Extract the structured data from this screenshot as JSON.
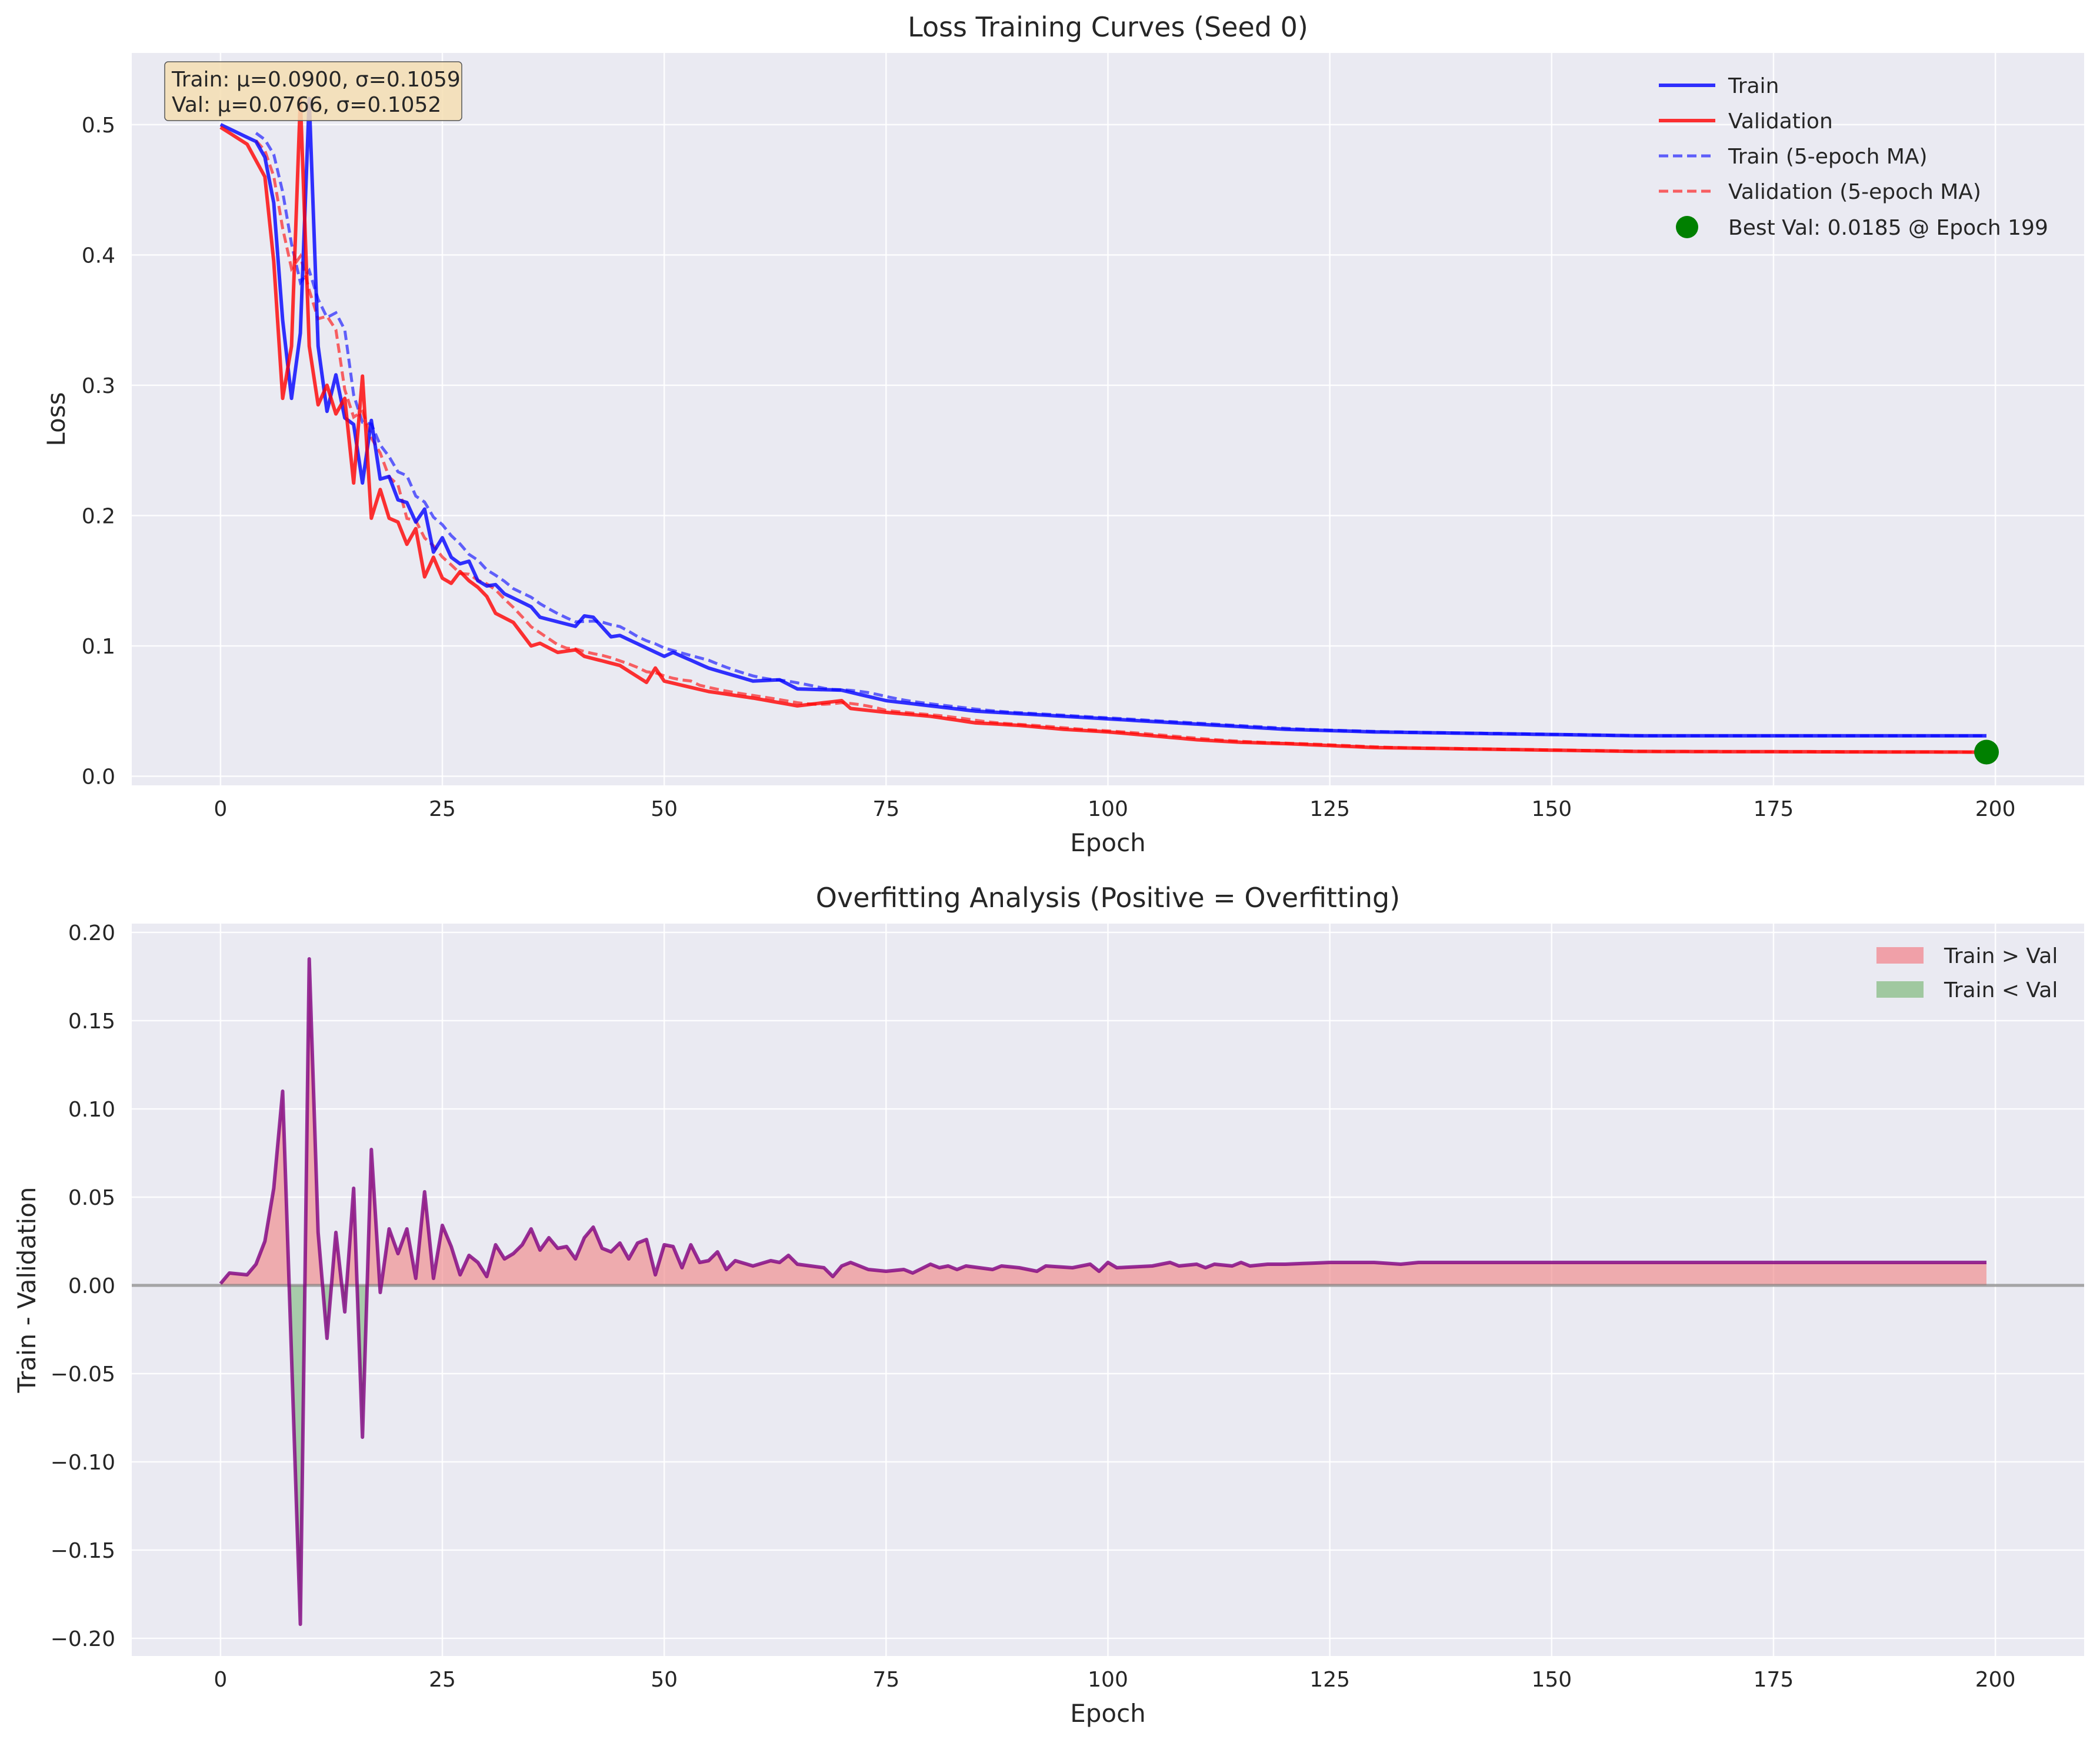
{
  "chart_data": [
    {
      "type": "line",
      "title": "Loss Training Curves (Seed 0)",
      "xlabel": "Epoch",
      "ylabel": "Loss",
      "xlim": [
        -10,
        210
      ],
      "ylim": [
        -0.007,
        0.555
      ],
      "xticks": [
        0,
        25,
        50,
        75,
        100,
        125,
        150,
        175,
        200
      ],
      "yticks": [
        0.0,
        0.1,
        0.2,
        0.3,
        0.4,
        0.5
      ],
      "xtick_labels": [
        "0",
        "25",
        "50",
        "75",
        "100",
        "125",
        "150",
        "175",
        "200"
      ],
      "ytick_labels": [
        "0.0",
        "0.1",
        "0.2",
        "0.3",
        "0.4",
        "0.5"
      ],
      "grid": true,
      "legend_position": "top-right",
      "stats_box": {
        "line1": "Train: μ=0.0900, σ=0.1059",
        "line2": "Val: μ=0.0766, σ=0.1052"
      },
      "colors": {
        "train": "#0000ff",
        "val": "#ff0000",
        "best": "#008000"
      },
      "series": [
        {
          "name": "Train",
          "style": "solid",
          "color": "#0000ff"
        },
        {
          "name": "Validation",
          "style": "solid",
          "color": "#ff0000"
        },
        {
          "name": "Train (5-epoch MA)",
          "style": "dashed",
          "color": "#0000ff"
        },
        {
          "name": "Validation (5-epoch MA)",
          "style": "dashed",
          "color": "#ff0000"
        }
      ],
      "train_keypoints": [
        [
          0,
          0.5
        ],
        [
          4,
          0.487
        ],
        [
          5,
          0.475
        ],
        [
          6,
          0.44
        ],
        [
          7,
          0.35
        ],
        [
          8,
          0.29
        ],
        [
          9,
          0.34
        ],
        [
          10,
          0.52
        ],
        [
          11,
          0.33
        ],
        [
          12,
          0.28
        ],
        [
          13,
          0.308
        ],
        [
          14,
          0.275
        ],
        [
          15,
          0.27
        ],
        [
          16,
          0.225
        ],
        [
          17,
          0.273
        ],
        [
          18,
          0.228
        ],
        [
          19,
          0.23
        ],
        [
          20,
          0.212
        ],
        [
          21,
          0.21
        ],
        [
          22,
          0.195
        ],
        [
          23,
          0.205
        ],
        [
          24,
          0.172
        ],
        [
          25,
          0.183
        ],
        [
          26,
          0.168
        ],
        [
          27,
          0.163
        ],
        [
          28,
          0.165
        ],
        [
          29,
          0.15
        ],
        [
          30,
          0.146
        ],
        [
          31,
          0.147
        ],
        [
          32,
          0.14
        ],
        [
          35,
          0.13
        ],
        [
          36,
          0.122
        ],
        [
          40,
          0.115
        ],
        [
          41,
          0.123
        ],
        [
          42,
          0.122
        ],
        [
          44,
          0.107
        ],
        [
          45,
          0.108
        ],
        [
          50,
          0.092
        ],
        [
          51,
          0.095
        ],
        [
          55,
          0.083
        ],
        [
          60,
          0.073
        ],
        [
          63,
          0.074
        ],
        [
          65,
          0.067
        ],
        [
          70,
          0.066
        ],
        [
          75,
          0.058
        ],
        [
          80,
          0.054
        ],
        [
          85,
          0.05
        ],
        [
          90,
          0.048
        ],
        [
          95,
          0.046
        ],
        [
          100,
          0.044
        ],
        [
          105,
          0.042
        ],
        [
          110,
          0.04
        ],
        [
          115,
          0.038
        ],
        [
          120,
          0.036
        ],
        [
          130,
          0.034
        ],
        [
          140,
          0.033
        ],
        [
          150,
          0.032
        ],
        [
          160,
          0.031
        ],
        [
          175,
          0.031
        ],
        [
          199,
          0.031
        ]
      ],
      "val_keypoints": [
        [
          0,
          0.498
        ],
        [
          3,
          0.485
        ],
        [
          5,
          0.46
        ],
        [
          6,
          0.395
        ],
        [
          7,
          0.29
        ],
        [
          8,
          0.33
        ],
        [
          9,
          0.52
        ],
        [
          10,
          0.33
        ],
        [
          11,
          0.285
        ],
        [
          12,
          0.3
        ],
        [
          13,
          0.278
        ],
        [
          14,
          0.29
        ],
        [
          15,
          0.225
        ],
        [
          16,
          0.307
        ],
        [
          17,
          0.198
        ],
        [
          18,
          0.22
        ],
        [
          19,
          0.198
        ],
        [
          20,
          0.195
        ],
        [
          21,
          0.178
        ],
        [
          22,
          0.19
        ],
        [
          23,
          0.153
        ],
        [
          24,
          0.168
        ],
        [
          25,
          0.152
        ],
        [
          26,
          0.148
        ],
        [
          27,
          0.157
        ],
        [
          28,
          0.15
        ],
        [
          29,
          0.145
        ],
        [
          30,
          0.138
        ],
        [
          31,
          0.125
        ],
        [
          33,
          0.118
        ],
        [
          35,
          0.1
        ],
        [
          36,
          0.102
        ],
        [
          38,
          0.095
        ],
        [
          40,
          0.097
        ],
        [
          41,
          0.092
        ],
        [
          45,
          0.085
        ],
        [
          48,
          0.072
        ],
        [
          49,
          0.083
        ],
        [
          50,
          0.073
        ],
        [
          55,
          0.065
        ],
        [
          60,
          0.06
        ],
        [
          65,
          0.054
        ],
        [
          70,
          0.058
        ],
        [
          71,
          0.052
        ],
        [
          75,
          0.049
        ],
        [
          80,
          0.046
        ],
        [
          85,
          0.041
        ],
        [
          90,
          0.039
        ],
        [
          95,
          0.036
        ],
        [
          100,
          0.034
        ],
        [
          105,
          0.031
        ],
        [
          110,
          0.028
        ],
        [
          115,
          0.026
        ],
        [
          120,
          0.025
        ],
        [
          130,
          0.022
        ],
        [
          140,
          0.021
        ],
        [
          150,
          0.02
        ],
        [
          160,
          0.019
        ],
        [
          199,
          0.0185
        ]
      ],
      "best_val": {
        "epoch": 199,
        "value": 0.0185,
        "label": "Best Val: 0.0185 @ Epoch 199"
      }
    },
    {
      "type": "area",
      "title": "Overfitting Analysis (Positive = Overfitting)",
      "xlabel": "Epoch",
      "ylabel": "Train - Validation",
      "xlim": [
        -10,
        210
      ],
      "ylim": [
        -0.21,
        0.205
      ],
      "xticks": [
        0,
        25,
        50,
        75,
        100,
        125,
        150,
        175,
        200
      ],
      "yticks": [
        -0.2,
        -0.15,
        -0.1,
        -0.05,
        0.0,
        0.05,
        0.1,
        0.15,
        0.2
      ],
      "xtick_labels": [
        "0",
        "25",
        "50",
        "75",
        "100",
        "125",
        "150",
        "175",
        "200"
      ],
      "ytick_labels": [
        "−0.20",
        "−0.15",
        "−0.10",
        "−0.05",
        "0.00",
        "0.05",
        "0.10",
        "0.15",
        "0.20"
      ],
      "grid": true,
      "legend_position": "top-right",
      "colors": {
        "line": "#800080",
        "pos_fill": "#f08080",
        "neg_fill": "#90c090",
        "zero": "#808080"
      },
      "legend": [
        {
          "name": "Train > Val",
          "color": "#f0a0a8"
        },
        {
          "name": "Train < Val",
          "color": "#a0c8a0"
        }
      ],
      "diff_keypoints": [
        [
          0,
          0.001
        ],
        [
          1,
          0.007
        ],
        [
          3,
          0.006
        ],
        [
          4,
          0.012
        ],
        [
          5,
          0.025
        ],
        [
          6,
          0.055
        ],
        [
          7,
          0.11
        ],
        [
          8,
          -0.04
        ],
        [
          9,
          -0.192
        ],
        [
          10,
          0.185
        ],
        [
          11,
          0.03
        ],
        [
          12,
          -0.03
        ],
        [
          13,
          0.03
        ],
        [
          14,
          -0.015
        ],
        [
          15,
          0.055
        ],
        [
          16,
          -0.086
        ],
        [
          17,
          0.077
        ],
        [
          18,
          -0.004
        ],
        [
          19,
          0.032
        ],
        [
          20,
          0.018
        ],
        [
          21,
          0.032
        ],
        [
          22,
          0.004
        ],
        [
          23,
          0.053
        ],
        [
          24,
          0.004
        ],
        [
          25,
          0.034
        ],
        [
          26,
          0.022
        ],
        [
          27,
          0.006
        ],
        [
          28,
          0.017
        ],
        [
          29,
          0.013
        ],
        [
          30,
          0.005
        ],
        [
          31,
          0.023
        ],
        [
          32,
          0.015
        ],
        [
          33,
          0.018
        ],
        [
          34,
          0.023
        ],
        [
          35,
          0.032
        ],
        [
          36,
          0.02
        ],
        [
          37,
          0.027
        ],
        [
          38,
          0.021
        ],
        [
          39,
          0.022
        ],
        [
          40,
          0.015
        ],
        [
          41,
          0.027
        ],
        [
          42,
          0.033
        ],
        [
          43,
          0.021
        ],
        [
          44,
          0.019
        ],
        [
          45,
          0.024
        ],
        [
          46,
          0.015
        ],
        [
          47,
          0.024
        ],
        [
          48,
          0.026
        ],
        [
          49,
          0.006
        ],
        [
          50,
          0.023
        ],
        [
          51,
          0.022
        ],
        [
          52,
          0.01
        ],
        [
          53,
          0.023
        ],
        [
          54,
          0.013
        ],
        [
          55,
          0.014
        ],
        [
          56,
          0.019
        ],
        [
          57,
          0.009
        ],
        [
          58,
          0.014
        ],
        [
          60,
          0.011
        ],
        [
          62,
          0.014
        ],
        [
          63,
          0.013
        ],
        [
          64,
          0.017
        ],
        [
          65,
          0.012
        ],
        [
          68,
          0.01
        ],
        [
          69,
          0.005
        ],
        [
          70,
          0.011
        ],
        [
          71,
          0.013
        ],
        [
          73,
          0.009
        ],
        [
          75,
          0.008
        ],
        [
          77,
          0.009
        ],
        [
          78,
          0.007
        ],
        [
          80,
          0.012
        ],
        [
          81,
          0.01
        ],
        [
          82,
          0.011
        ],
        [
          83,
          0.009
        ],
        [
          84,
          0.011
        ],
        [
          87,
          0.009
        ],
        [
          88,
          0.011
        ],
        [
          90,
          0.01
        ],
        [
          92,
          0.008
        ],
        [
          93,
          0.011
        ],
        [
          96,
          0.01
        ],
        [
          98,
          0.012
        ],
        [
          99,
          0.008
        ],
        [
          100,
          0.013
        ],
        [
          101,
          0.01
        ],
        [
          105,
          0.011
        ],
        [
          106,
          0.012
        ],
        [
          107,
          0.013
        ],
        [
          108,
          0.011
        ],
        [
          110,
          0.012
        ],
        [
          111,
          0.01
        ],
        [
          112,
          0.012
        ],
        [
          114,
          0.011
        ],
        [
          115,
          0.013
        ],
        [
          116,
          0.011
        ],
        [
          118,
          0.012
        ],
        [
          120,
          0.012
        ],
        [
          125,
          0.013
        ],
        [
          128,
          0.013
        ],
        [
          130,
          0.013
        ],
        [
          133,
          0.012
        ],
        [
          135,
          0.013
        ],
        [
          140,
          0.013
        ],
        [
          145,
          0.013
        ],
        [
          150,
          0.013
        ],
        [
          160,
          0.013
        ],
        [
          170,
          0.013
        ],
        [
          180,
          0.013
        ],
        [
          190,
          0.013
        ],
        [
          199,
          0.013
        ]
      ]
    }
  ]
}
